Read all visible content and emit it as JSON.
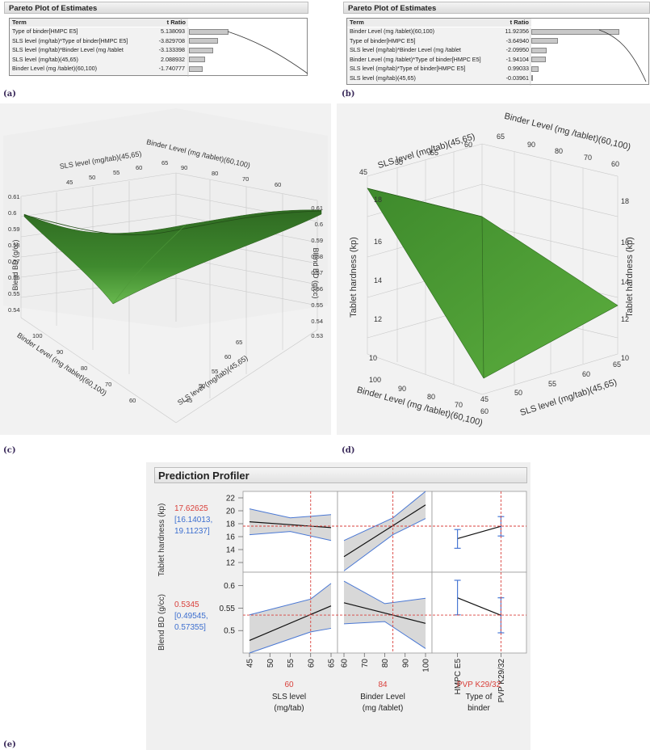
{
  "captions": {
    "a": "(a)",
    "b": "(b)",
    "c": "(c)",
    "d": "(d)",
    "e": "(e)"
  },
  "pareto_a": {
    "title": "Pareto Plot of Estimates",
    "col_term": "Term",
    "col_t": "t Ratio",
    "rows": [
      {
        "term": "Type of binder[HMPC E5]",
        "t": "5.138093",
        "value": 5.138093
      },
      {
        "term": "SLS level (mg/tab)*Type of binder[HMPC E5]",
        "t": "-3.829708",
        "value": -3.829708
      },
      {
        "term": "SLS level (mg/tab)*Binder Level (mg /tablet",
        "t": "-3.133398",
        "value": -3.133398
      },
      {
        "term": "SLS level (mg/tab)(45,65)",
        "t": "2.088932",
        "value": 2.088932
      },
      {
        "term": "Binder Level (mg /tablet)(60,100)",
        "t": "-1.740777",
        "value": -1.740777
      }
    ]
  },
  "pareto_b": {
    "title": "Pareto Plot of Estimates",
    "col_term": "Term",
    "col_t": "t Ratio",
    "rows": [
      {
        "term": "Binder Level (mg /tablet)(60,100)",
        "t": "11.92356",
        "value": 11.92356
      },
      {
        "term": "Type of binder[HMPC E5]",
        "t": "-3.64940",
        "value": -3.6494
      },
      {
        "term": "SLS level (mg/tab)*Binder Level (mg /tablet",
        "t": "-2.09950",
        "value": -2.0995
      },
      {
        "term": "Binder Level (mg /tablet)*Type of binder[HMPC E5]",
        "t": "-1.94104",
        "value": -1.94104
      },
      {
        "term": "SLS level (mg/tab)*Type of binder[HMPC E5]",
        "t": "0.99033",
        "value": 0.99033
      },
      {
        "term": "SLS level (mg/tab)(45,65)",
        "t": "-0.03961",
        "value": -0.03961
      }
    ]
  },
  "surface_c": {
    "z_label": "Blend BD (g/cc)",
    "x_label": "Binder Level (mg /tablet)(60,100)",
    "y_label": "SLS level (mg/tab)(45,65)",
    "z_ticks": [
      "0.61",
      "0.6",
      "0.59",
      "0.58",
      "0.57",
      "0.56",
      "0.55",
      "0.54",
      "0.53"
    ],
    "binder_ticks": [
      "100",
      "90",
      "80",
      "70",
      "60"
    ],
    "sls_ticks": [
      "65",
      "60",
      "55",
      "50",
      "45"
    ]
  },
  "surface_d": {
    "z_label": "Tablet hardness (kp)",
    "x_label": "Binder Level (mg /tablet)(60,100)",
    "y_label": "SLS level (mg/tab)(45,65)",
    "z_ticks": [
      "18",
      "16",
      "14",
      "12",
      "10"
    ],
    "binder_ticks": [
      "100",
      "90",
      "80",
      "70",
      "60"
    ],
    "sls_ticks": [
      "65",
      "60",
      "55",
      "50",
      "45"
    ]
  },
  "profiler": {
    "title": "Prediction Profiler",
    "responses": [
      {
        "name": "Tablet hardness (kp)",
        "value": "17.62625",
        "ci": "[16.14013, 19.11237]",
        "ci_l1": "[16.14013,",
        "ci_l2": "19.11237]"
      },
      {
        "name": "Blend BD (g/cc)",
        "value": "0.5345",
        "ci": "[0.49545, 0.57355]",
        "ci_l1": "[0.49545,",
        "ci_l2": "0.57355]"
      }
    ],
    "factors": [
      {
        "name": "SLS level (mg/tab)",
        "name_l1": "SLS level",
        "name_l2": "(mg/tab)",
        "current": "60",
        "ticks": [
          "45",
          "50",
          "55",
          "60",
          "65"
        ]
      },
      {
        "name": "Binder Level (mg /tablet)",
        "name_l1": "Binder Level",
        "name_l2": "(mg /tablet)",
        "current": "84",
        "ticks": [
          "60",
          "70",
          "80",
          "90",
          "100"
        ]
      },
      {
        "name": "Type of binder",
        "name_l1": "Type of",
        "name_l2": "binder",
        "current": "PVP K29/32",
        "ticks": [
          "HMPC E5",
          "PVP K29/32"
        ]
      }
    ],
    "hardness_ticks": [
      "22",
      "20",
      "18",
      "16",
      "14",
      "12"
    ],
    "bd_ticks": [
      "0.6",
      "0.55",
      "0.5"
    ]
  },
  "chart_data": [
    {
      "type": "bar",
      "title": "Pareto Plot of Estimates",
      "categories": [
        "Type of binder[HMPC E5]",
        "SLS level (mg/tab)*Type of binder[HMPC E5]",
        "SLS level (mg/tab)*Binder Level (mg /tablet",
        "SLS level (mg/tab)(45,65)",
        "Binder Level (mg /tablet)(60,100)"
      ],
      "values": [
        5.138093,
        -3.829708,
        -3.133398,
        2.088932,
        -1.740777
      ]
    },
    {
      "type": "bar",
      "title": "Pareto Plot of Estimates",
      "categories": [
        "Binder Level (mg /tablet)(60,100)",
        "Type of binder[HMPC E5]",
        "SLS level (mg/tab)*Binder Level (mg /tablet",
        "Binder Level (mg /tablet)*Type of binder[HMPC E5]",
        "SLS level (mg/tab)*Type of binder[HMPC E5]",
        "SLS level (mg/tab)(45,65)"
      ],
      "values": [
        11.92356,
        -3.6494,
        -2.0995,
        -1.94104,
        0.99033,
        -0.03961
      ]
    },
    {
      "type": "line",
      "series": [
        {
          "name": "Tablet hardness (kp) vs SLS level (mg/tab)",
          "x": [
            45,
            65
          ],
          "y": [
            18.3,
            17.4
          ]
        },
        {
          "name": "Tablet hardness (kp) vs Binder Level (mg /tablet)",
          "x": [
            60,
            100
          ],
          "y": [
            12.9,
            20.9
          ]
        },
        {
          "name": "Tablet hardness (kp) vs Type of binder",
          "x": [
            "HMPC E5",
            "PVP K29/32"
          ],
          "y": [
            15.7,
            17.6
          ]
        },
        {
          "name": "Blend BD (g/cc) vs SLS level (mg/tab)",
          "x": [
            45,
            65
          ],
          "y": [
            0.478,
            0.555
          ]
        },
        {
          "name": "Blend BD (g/cc) vs Binder Level (mg /tablet)",
          "x": [
            60,
            100
          ],
          "y": [
            0.562,
            0.516
          ]
        },
        {
          "name": "Blend BD (g/cc) vs Type of binder",
          "x": [
            "HMPC E5",
            "PVP K29/32"
          ],
          "y": [
            0.573,
            0.534
          ]
        }
      ],
      "ylim_hardness": [
        10.5,
        23
      ],
      "ylim_bd": [
        0.45,
        0.63
      ]
    }
  ]
}
